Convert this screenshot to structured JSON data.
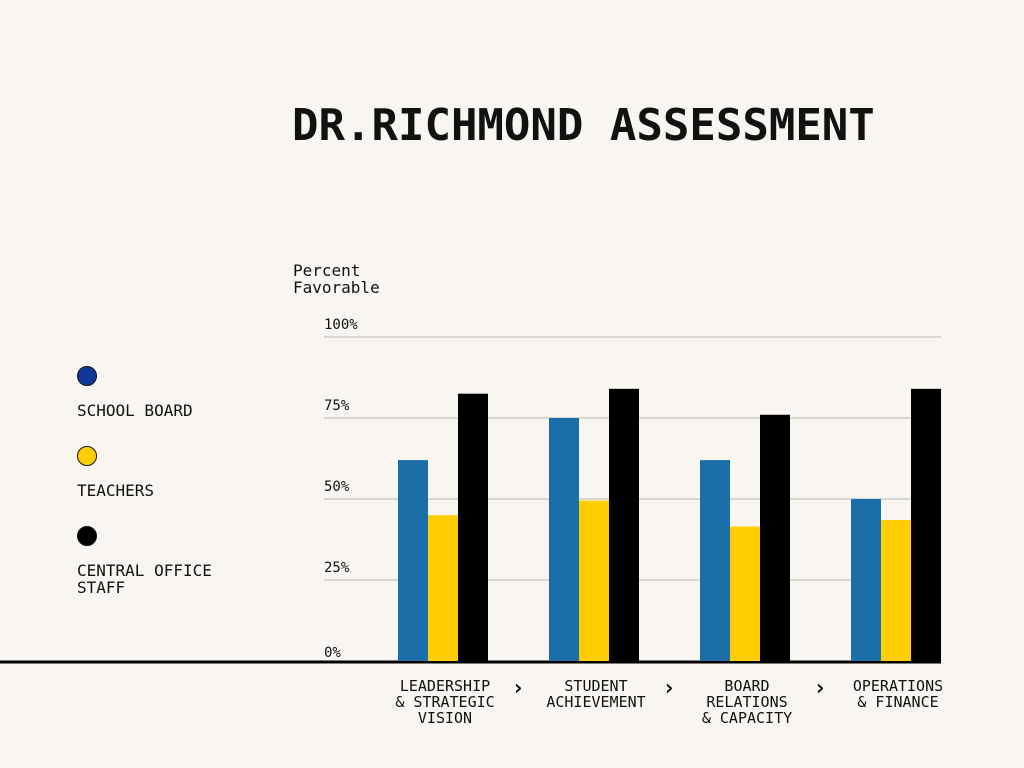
{
  "chart_data": {
    "type": "bar",
    "title": "DR.RICHMOND ASSESSMENT",
    "ylabel": "Percent\nFavorable",
    "ylim": [
      0,
      100
    ],
    "yticks": [
      {
        "value": 0,
        "label": "0%"
      },
      {
        "value": 25,
        "label": "25%"
      },
      {
        "value": 50,
        "label": "50%"
      },
      {
        "value": 75,
        "label": "75%"
      },
      {
        "value": 100,
        "label": "100%"
      }
    ],
    "grid": true,
    "categories": [
      "LEADERSHIP\n& STRATEGIC\nVISION",
      "STUDENT\nACHIEVEMENT",
      "BOARD\nRELATIONS\n& CAPACITY",
      "OPERATIONS\n& FINANCE"
    ],
    "category_separator": "›",
    "series": [
      {
        "name": "SCHOOL BOARD",
        "color": "#1a6fa8",
        "legend_color": "#10389a",
        "values": [
          62,
          75,
          62,
          50
        ]
      },
      {
        "name": "TEACHERS",
        "color": "#ffcd00",
        "legend_color": "#ffcd00",
        "values": [
          45,
          49.5,
          41.5,
          43.5
        ]
      },
      {
        "name": "CENTRAL OFFICE\nSTAFF",
        "color": "#000000",
        "legend_color": "#000000",
        "values": [
          82.5,
          84,
          76,
          84
        ]
      }
    ],
    "legend_position": "left"
  }
}
